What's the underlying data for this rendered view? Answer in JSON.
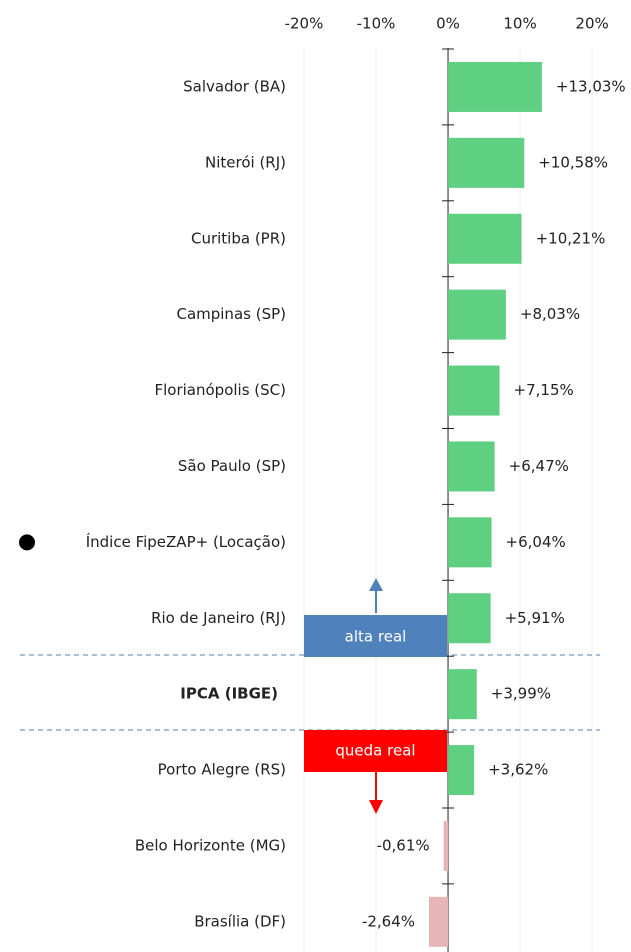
{
  "chart_data": {
    "type": "hbar",
    "categories": [
      "Salvador (BA)",
      "Niterói (RJ)",
      "Curitiba (PR)",
      "Campinas (SP)",
      "Florianópolis (SC)",
      "São Paulo (SP)",
      "Índice FipeZAP+ (Locação)",
      "Rio de Janeiro (RJ)",
      "IPCA (IBGE)",
      "Porto Alegre (RS)",
      "Belo Horizonte (MG)",
      "Brasília (DF)"
    ],
    "values": [
      13.03,
      10.58,
      10.21,
      8.03,
      7.15,
      6.47,
      6.04,
      5.91,
      3.99,
      3.62,
      -0.61,
      -2.64
    ],
    "value_labels": [
      "+13,03%",
      "+10,58%",
      "+10,21%",
      "+8,03%",
      "+7,15%",
      "+6,47%",
      "+6,04%",
      "+5,91%",
      "+3,99%",
      "+3,62%",
      "-0,61%",
      "-2,64%"
    ],
    "color": "#5fcf82",
    "negative_color": "#e6b5b5",
    "xlim": [
      -62.2,
      25.4
    ],
    "xticks": [
      {
        "value": -20,
        "label": "-20%"
      },
      {
        "value": -10,
        "label": "-10%"
      },
      {
        "value": 0,
        "label": "0%"
      },
      {
        "value": 10,
        "label": "10%"
      },
      {
        "value": 20,
        "label": "20%"
      }
    ],
    "grid": true,
    "annotations": [
      {
        "text": "alta real",
        "color": "#4f81bd"
      },
      {
        "text": "queda real",
        "color": "#ff0000"
      }
    ]
  }
}
